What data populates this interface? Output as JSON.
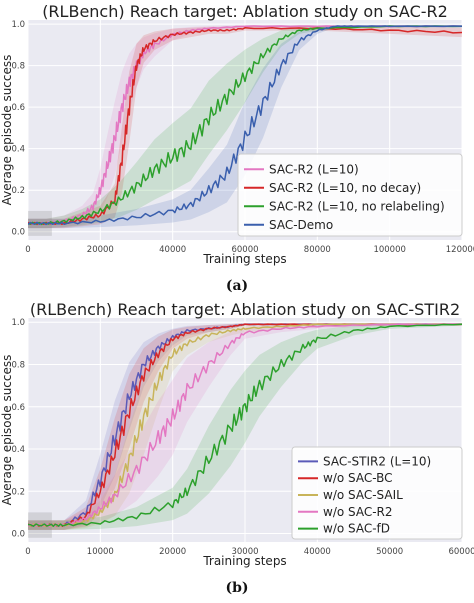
{
  "chart_data": [
    {
      "type": "line",
      "title": "(RLBench) Reach target: Ablation study on SAC-R2",
      "xlabel": "Training steps",
      "ylabel": "Average episode success",
      "xlim": [
        0,
        120000
      ],
      "ylim": [
        -0.04,
        1.02
      ],
      "xticks": [
        0,
        20000,
        40000,
        60000,
        80000,
        100000,
        120000
      ],
      "xtick_labels": [
        "0",
        "20000",
        "40000",
        "60000",
        "80000",
        "100000",
        "120000"
      ],
      "yticks": [
        0.0,
        0.2,
        0.4,
        0.6,
        0.8,
        1.0
      ],
      "ytick_labels": [
        "0.0",
        "0.2",
        "0.4",
        "0.6",
        "0.8",
        "1.0"
      ],
      "grid": true,
      "legend_position": "lower-right",
      "caption": "(a)",
      "series": [
        {
          "name": "SAC-R2 (L=10)",
          "color": "#e377c2",
          "x": [
            0,
            5000,
            10000,
            15000,
            18000,
            20000,
            22000,
            24000,
            26000,
            28000,
            30000,
            32000,
            35000,
            40000,
            45000,
            50000,
            60000,
            80000,
            100000,
            120000
          ],
          "y": [
            0.04,
            0.04,
            0.05,
            0.08,
            0.12,
            0.2,
            0.32,
            0.45,
            0.6,
            0.72,
            0.8,
            0.86,
            0.9,
            0.95,
            0.97,
            0.98,
            0.99,
            0.99,
            0.99,
            0.99
          ]
        },
        {
          "name": "SAC-R2 (L=10, no decay)",
          "color": "#d62728",
          "x": [
            0,
            5000,
            10000,
            15000,
            20000,
            24000,
            26000,
            28000,
            30000,
            32000,
            35000,
            40000,
            45000,
            50000,
            55000,
            60000,
            80000,
            100000,
            120000
          ],
          "y": [
            0.04,
            0.04,
            0.04,
            0.06,
            0.08,
            0.15,
            0.35,
            0.6,
            0.8,
            0.88,
            0.92,
            0.95,
            0.96,
            0.97,
            0.97,
            0.98,
            0.98,
            0.97,
            0.96
          ]
        },
        {
          "name": "SAC-R2 (L=10, no relabeling)",
          "color": "#2ca02c",
          "x": [
            0,
            5000,
            10000,
            15000,
            20000,
            25000,
            30000,
            35000,
            40000,
            45000,
            50000,
            55000,
            60000,
            65000,
            70000,
            75000,
            80000,
            100000,
            120000
          ],
          "y": [
            0.04,
            0.04,
            0.05,
            0.07,
            0.1,
            0.15,
            0.22,
            0.3,
            0.36,
            0.42,
            0.55,
            0.65,
            0.75,
            0.85,
            0.93,
            0.97,
            0.98,
            0.99,
            0.99
          ]
        },
        {
          "name": "SAC-Demo",
          "color": "#3a5fad",
          "x": [
            0,
            5000,
            10000,
            20000,
            30000,
            40000,
            45000,
            50000,
            55000,
            60000,
            65000,
            70000,
            75000,
            80000,
            85000,
            90000,
            100000,
            120000
          ],
          "y": [
            0.04,
            0.04,
            0.04,
            0.05,
            0.07,
            0.1,
            0.13,
            0.2,
            0.28,
            0.45,
            0.62,
            0.8,
            0.92,
            0.97,
            0.99,
            0.99,
            0.99,
            0.99
          ]
        }
      ]
    },
    {
      "type": "line",
      "title": "(RLBench) Reach target: Ablation study on SAC-STIR2",
      "xlabel": "Training steps",
      "ylabel": "Average episode success",
      "xlim": [
        0,
        60000
      ],
      "ylim": [
        -0.04,
        1.02
      ],
      "xticks": [
        0,
        10000,
        20000,
        30000,
        40000,
        50000,
        60000
      ],
      "xtick_labels": [
        "0",
        "10000",
        "20000",
        "30000",
        "40000",
        "50000",
        "60000"
      ],
      "yticks": [
        0.0,
        0.2,
        0.4,
        0.6,
        0.8,
        1.0
      ],
      "ytick_labels": [
        "0.0",
        "0.2",
        "0.4",
        "0.6",
        "0.8",
        "1.0"
      ],
      "grid": true,
      "legend_position": "lower-right",
      "caption": "(b)",
      "series": [
        {
          "name": "SAC-STIR2 (L=10)",
          "color": "#5b5bb8",
          "x": [
            0,
            3000,
            5000,
            8000,
            10000,
            12000,
            14000,
            16000,
            18000,
            20000,
            22000,
            25000,
            28000,
            30000,
            35000,
            40000,
            50000,
            60000
          ],
          "y": [
            0.04,
            0.04,
            0.04,
            0.1,
            0.25,
            0.45,
            0.65,
            0.8,
            0.88,
            0.93,
            0.96,
            0.97,
            0.98,
            0.99,
            0.99,
            0.99,
            0.99,
            0.99
          ]
        },
        {
          "name": "w/o SAC-BC",
          "color": "#d62728",
          "x": [
            0,
            3000,
            5000,
            8000,
            10000,
            12000,
            14000,
            16000,
            18000,
            20000,
            22000,
            25000,
            28000,
            30000,
            35000,
            40000,
            50000,
            60000
          ],
          "y": [
            0.04,
            0.04,
            0.04,
            0.08,
            0.2,
            0.38,
            0.58,
            0.75,
            0.85,
            0.92,
            0.95,
            0.97,
            0.98,
            0.99,
            0.99,
            0.99,
            0.99,
            0.99
          ]
        },
        {
          "name": "w/o SAC-SAIL",
          "color": "#c8b45a",
          "x": [
            0,
            3000,
            5000,
            8000,
            10000,
            12000,
            14000,
            16000,
            18000,
            20000,
            22000,
            25000,
            28000,
            30000,
            35000,
            40000,
            50000,
            60000
          ],
          "y": [
            0.04,
            0.04,
            0.04,
            0.06,
            0.1,
            0.18,
            0.35,
            0.55,
            0.72,
            0.85,
            0.9,
            0.94,
            0.96,
            0.97,
            0.98,
            0.99,
            0.99,
            0.99
          ]
        },
        {
          "name": "w/o SAC-R2",
          "color": "#e377c2",
          "x": [
            0,
            3000,
            5000,
            8000,
            10000,
            12000,
            15000,
            18000,
            20000,
            22000,
            25000,
            28000,
            30000,
            35000,
            40000,
            50000,
            60000
          ],
          "y": [
            0.04,
            0.04,
            0.04,
            0.07,
            0.12,
            0.18,
            0.3,
            0.45,
            0.55,
            0.68,
            0.8,
            0.9,
            0.95,
            0.97,
            0.98,
            0.99,
            0.99
          ]
        },
        {
          "name": "w/o SAC-fD",
          "color": "#2ca02c",
          "x": [
            0,
            3000,
            5000,
            10000,
            15000,
            20000,
            22000,
            25000,
            28000,
            30000,
            32000,
            35000,
            38000,
            40000,
            45000,
            50000,
            60000
          ],
          "y": [
            0.04,
            0.04,
            0.04,
            0.05,
            0.08,
            0.14,
            0.2,
            0.35,
            0.5,
            0.6,
            0.7,
            0.8,
            0.88,
            0.92,
            0.96,
            0.98,
            0.99
          ]
        }
      ]
    }
  ]
}
